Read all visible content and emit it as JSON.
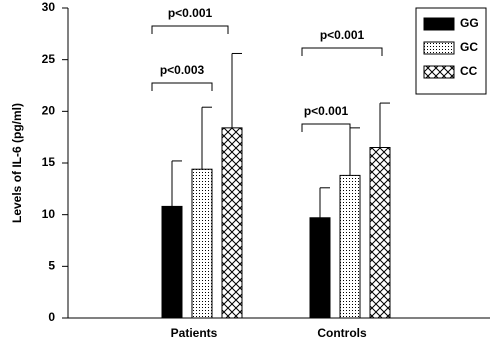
{
  "chart_data": {
    "type": "bar",
    "y_label": "Levels of IL-6 (pg/ml)",
    "categories": [
      "Patients",
      "Controls"
    ],
    "series": [
      {
        "name": "GG",
        "color": "#000000",
        "pattern": "solid",
        "values": [
          10.8,
          9.7
        ],
        "errors": [
          4.4,
          2.9
        ]
      },
      {
        "name": "GC",
        "color": "#000000",
        "pattern": "dots",
        "values": [
          14.4,
          13.8
        ],
        "errors": [
          6.0,
          4.6
        ]
      },
      {
        "name": "CC",
        "color": "#000000",
        "pattern": "crosshatch",
        "values": [
          18.4,
          16.5
        ],
        "errors": [
          7.2,
          4.3
        ]
      }
    ],
    "ylim": [
      0,
      30
    ],
    "yticks": [
      0,
      5,
      10,
      15,
      20,
      25,
      30
    ],
    "grid": false,
    "legend": "top-right",
    "annotations": [
      "p<0.001",
      "p<0.003",
      "p<0.001",
      "p<0.001"
    ]
  }
}
